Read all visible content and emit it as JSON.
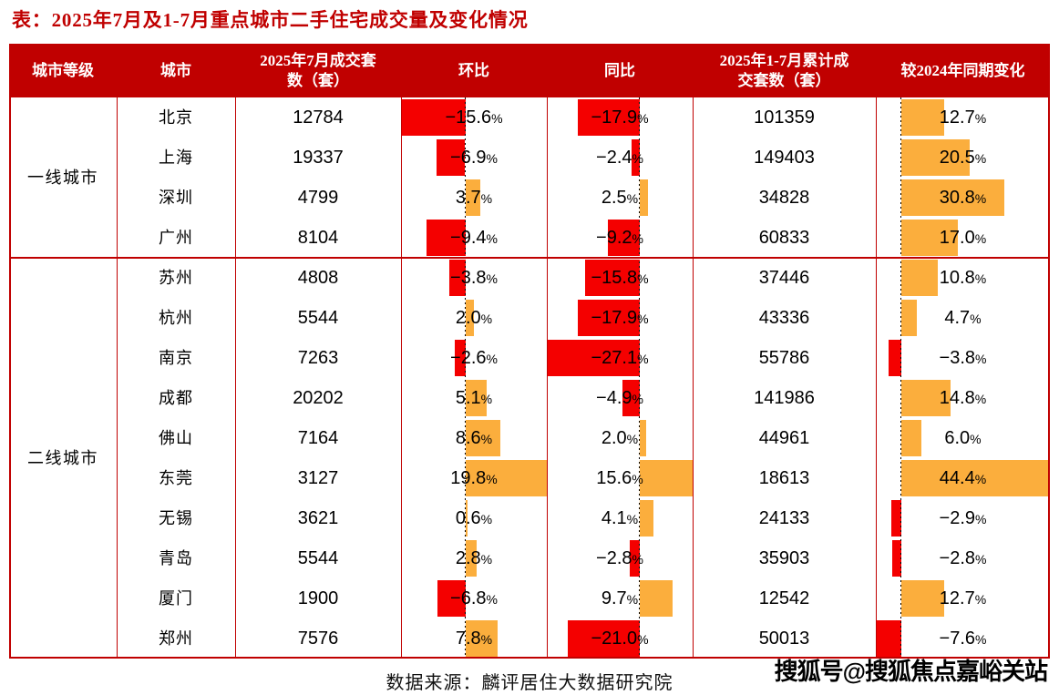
{
  "page": {
    "title": "表：2025年7月及1-7月重点城市二手住宅成交量及变化情况"
  },
  "colors": {
    "frame": "#c00000",
    "header_bg": "#c00000",
    "header_text": "#ffffff",
    "negative_bar": "#f40000",
    "positive_bar": "#fbae3d",
    "title_text": "#c00000"
  },
  "chart_data": {
    "type": "table",
    "title": "表：2025年7月及1-7月重点城市二手住宅成交量及变化情况",
    "columns": [
      {
        "id": "tier",
        "label": "城市等级",
        "lines": [
          "城市等级"
        ]
      },
      {
        "id": "city",
        "label": "城市",
        "lines": [
          "城市"
        ]
      },
      {
        "id": "jul",
        "label": "2025年7月成交套数（套）",
        "lines": [
          "2025年7月成交套",
          "数（套）"
        ]
      },
      {
        "id": "mom",
        "label": "环比",
        "lines": [
          "环比"
        ],
        "bar": true
      },
      {
        "id": "yoy",
        "label": "同比",
        "lines": [
          "同比"
        ],
        "bar": true
      },
      {
        "id": "cum",
        "label": "2025年1-7月累计成交套数（套）",
        "lines": [
          "2025年1-7月累计成",
          "交套数（套）"
        ]
      },
      {
        "id": "chg",
        "label": "较2024年同期变化",
        "lines": [
          "较2024年同期变化"
        ],
        "bar": true
      }
    ],
    "groups": [
      {
        "tier": "一线城市",
        "rows": [
          {
            "city": "北京",
            "jul": 12784,
            "mom": -15.6,
            "yoy": -17.9,
            "cum": 101359,
            "chg": 12.7
          },
          {
            "city": "上海",
            "jul": 19337,
            "mom": -6.9,
            "yoy": -2.4,
            "cum": 149403,
            "chg": 20.5
          },
          {
            "city": "深圳",
            "jul": 4799,
            "mom": 3.7,
            "yoy": 2.5,
            "cum": 34828,
            "chg": 30.8
          },
          {
            "city": "广州",
            "jul": 8104,
            "mom": -9.4,
            "yoy": -9.2,
            "cum": 60833,
            "chg": 17.0
          }
        ]
      },
      {
        "tier": "二线城市",
        "rows": [
          {
            "city": "苏州",
            "jul": 4808,
            "mom": -3.8,
            "yoy": -15.8,
            "cum": 37446,
            "chg": 10.8
          },
          {
            "city": "杭州",
            "jul": 5544,
            "mom": 2.0,
            "yoy": -17.9,
            "cum": 43336,
            "chg": 4.7
          },
          {
            "city": "南京",
            "jul": 7263,
            "mom": -2.6,
            "yoy": -27.1,
            "cum": 55786,
            "chg": -3.8
          },
          {
            "city": "成都",
            "jul": 20202,
            "mom": 5.1,
            "yoy": -4.9,
            "cum": 141986,
            "chg": 14.8
          },
          {
            "city": "佛山",
            "jul": 7164,
            "mom": 8.6,
            "yoy": 2.0,
            "cum": 44961,
            "chg": 6.0
          },
          {
            "city": "东莞",
            "jul": 3127,
            "mom": 19.8,
            "yoy": 15.6,
            "cum": 18613,
            "chg": 44.4
          },
          {
            "city": "无锡",
            "jul": 3621,
            "mom": 0.6,
            "yoy": 4.1,
            "cum": 24133,
            "chg": -2.9
          },
          {
            "city": "青岛",
            "jul": 5544,
            "mom": 2.8,
            "yoy": -2.8,
            "cum": 35903,
            "chg": -2.8
          },
          {
            "city": "厦门",
            "jul": 1900,
            "mom": -6.8,
            "yoy": 9.7,
            "cum": 12542,
            "chg": 12.7
          },
          {
            "city": "郑州",
            "jul": 7576,
            "mom": 7.8,
            "yoy": -21.0,
            "cum": 50013,
            "chg": -7.6
          }
        ]
      }
    ]
  },
  "footer": {
    "source": "数据来源：麟评居住大数据研究院",
    "watermark": "搜狐号@搜狐焦点嘉峪关站"
  }
}
